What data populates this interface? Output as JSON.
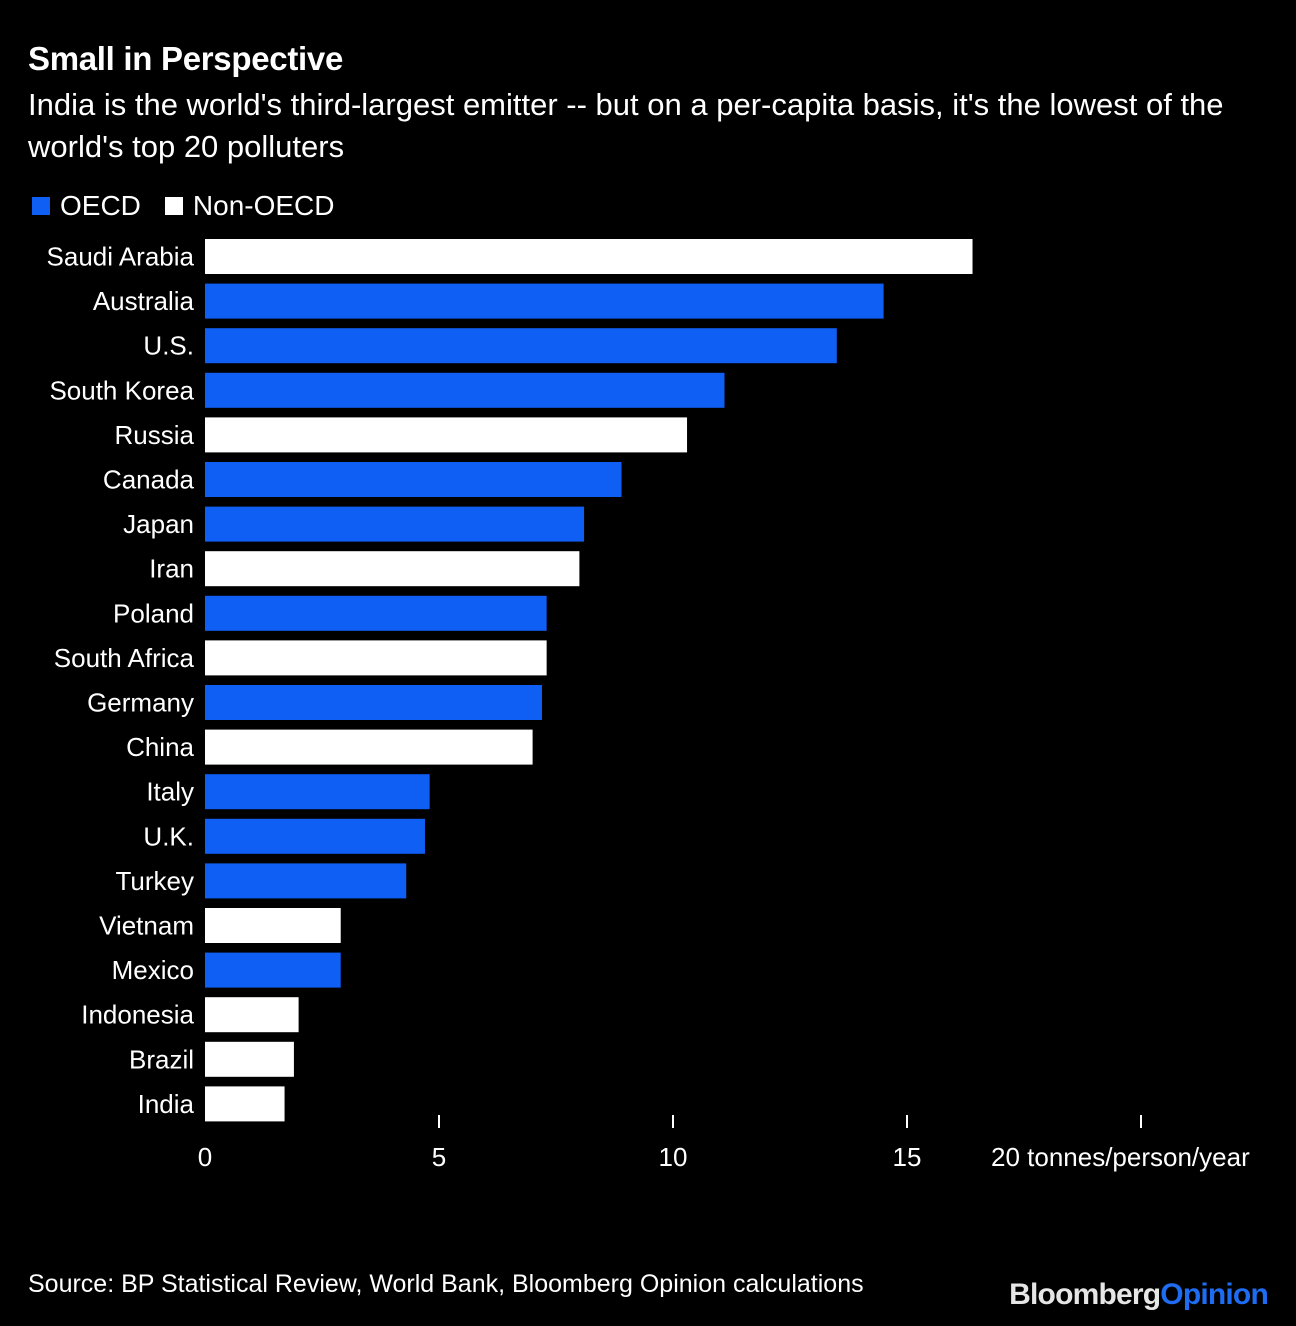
{
  "header": {
    "title": "Small in Perspective",
    "subtitle": "India is the world's third-largest emitter -- but on a per-capita basis, it's the lowest of the world's top 20 polluters"
  },
  "legend": {
    "oecd_label": "OECD",
    "non_oecd_label": "Non-OECD"
  },
  "colors": {
    "oecd": "#0f5ff5",
    "non_oecd": "#ffffff",
    "background": "#000000"
  },
  "footer": {
    "source": "Source: BP Statistical Review, World Bank, Bloomberg Opinion calculations",
    "brand_part1": "Bloomberg",
    "brand_part2": "Opinion"
  },
  "chart_data": {
    "type": "bar",
    "orientation": "horizontal",
    "title": "Small in Perspective",
    "xlabel": "tonnes/person/year",
    "xlim": [
      0,
      20
    ],
    "xticks": [
      0,
      5,
      10,
      15,
      20
    ],
    "xtick_labels": [
      "0",
      "5",
      "10",
      "15",
      "20 tonnes/person/year"
    ],
    "categories": [
      "Saudi Arabia",
      "Australia",
      "U.S.",
      "South Korea",
      "Russia",
      "Canada",
      "Japan",
      "Iran",
      "Poland",
      "South Africa",
      "Germany",
      "China",
      "Italy",
      "U.K.",
      "Turkey",
      "Vietnam",
      "Mexico",
      "Indonesia",
      "Brazil",
      "India"
    ],
    "values": [
      16.4,
      14.5,
      13.5,
      11.1,
      10.3,
      8.9,
      8.1,
      8.0,
      7.3,
      7.3,
      7.2,
      7.0,
      4.8,
      4.7,
      4.3,
      2.9,
      2.9,
      2.0,
      1.9,
      1.7
    ],
    "groups": [
      "Non-OECD",
      "OECD",
      "OECD",
      "OECD",
      "Non-OECD",
      "OECD",
      "OECD",
      "Non-OECD",
      "OECD",
      "Non-OECD",
      "OECD",
      "Non-OECD",
      "OECD",
      "OECD",
      "OECD",
      "Non-OECD",
      "OECD",
      "Non-OECD",
      "Non-OECD",
      "Non-OECD"
    ],
    "legend": [
      "OECD",
      "Non-OECD"
    ],
    "grid": false
  }
}
